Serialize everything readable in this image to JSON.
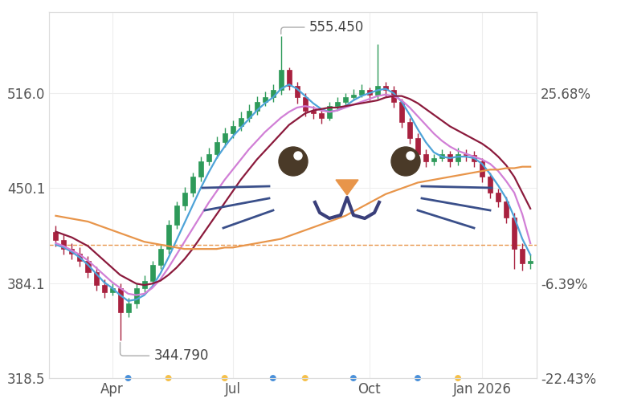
{
  "chart_data": {
    "type": "candlestick",
    "categories": [
      null,
      null,
      null,
      null,
      null,
      null,
      null,
      "Apr",
      null,
      null,
      null,
      null,
      null,
      null,
      null,
      null,
      null,
      null,
      null,
      null,
      null,
      null,
      "Jul",
      null,
      null,
      null,
      null,
      null,
      null,
      null,
      null,
      null,
      null,
      null,
      null,
      null,
      null,
      null,
      null,
      "Oct",
      null,
      null,
      null,
      null,
      null,
      null,
      null,
      null,
      null,
      null,
      null,
      null,
      null,
      "Jan 2026",
      null,
      null,
      null,
      null,
      null,
      null
    ],
    "open": [
      420,
      414,
      408,
      405,
      400,
      392,
      383,
      378,
      381,
      364,
      370,
      381,
      386,
      397,
      408,
      425,
      438,
      447,
      458,
      469,
      474,
      482,
      488,
      493,
      499,
      504,
      510,
      513,
      518,
      532,
      521,
      513,
      504,
      502,
      499,
      507,
      510,
      513,
      515,
      518,
      515,
      521,
      518,
      510,
      496,
      485,
      474,
      469,
      471,
      474,
      469,
      474,
      473,
      469,
      458,
      447,
      441,
      430,
      408,
      398
    ],
    "high": [
      424,
      418,
      412,
      409,
      403,
      396,
      387,
      384,
      384,
      374,
      384,
      390,
      400,
      411,
      428,
      441,
      451,
      461,
      472,
      478,
      486,
      492,
      497,
      503,
      508,
      514,
      517,
      522,
      555.45,
      534,
      524,
      516,
      507,
      505,
      510,
      513,
      516,
      519,
      522,
      520,
      550,
      524,
      521,
      512,
      499,
      488,
      477,
      474,
      477,
      476,
      478,
      477,
      476,
      471,
      461,
      450,
      444,
      433,
      412,
      404
    ],
    "low": [
      410,
      404,
      401,
      396,
      388,
      379,
      374,
      376,
      344.79,
      361,
      367,
      378,
      383,
      394,
      405,
      422,
      435,
      444,
      455,
      466,
      471,
      479,
      485,
      490,
      496,
      501,
      507,
      510,
      515,
      518,
      509,
      500,
      498,
      495,
      497,
      505,
      507,
      511,
      513,
      511,
      512,
      514,
      506,
      492,
      481,
      470,
      465,
      466,
      469,
      465,
      466,
      469,
      465,
      454,
      443,
      437,
      426,
      394,
      393,
      394
    ],
    "close": [
      414,
      408,
      405,
      400,
      392,
      383,
      378,
      381,
      364,
      370,
      381,
      386,
      397,
      408,
      425,
      438,
      447,
      458,
      469,
      474,
      482,
      488,
      493,
      499,
      504,
      510,
      513,
      518,
      532,
      521,
      513,
      504,
      502,
      499,
      507,
      510,
      513,
      515,
      518,
      515,
      521,
      518,
      510,
      496,
      485,
      474,
      469,
      471,
      474,
      469,
      474,
      473,
      469,
      458,
      447,
      441,
      430,
      408,
      398,
      400
    ],
    "colors": [
      "#a8213f",
      "#a8213f",
      "#a8213f",
      "#a8213f",
      "#a8213f",
      "#a8213f",
      "#a8213f",
      "#2e9a5a",
      "#a8213f",
      "#2e9a5a",
      "#2e9a5a",
      "#2e9a5a",
      "#2e9a5a",
      "#2e9a5a",
      "#2e9a5a",
      "#2e9a5a",
      "#2e9a5a",
      "#2e9a5a",
      "#2e9a5a",
      "#2e9a5a",
      "#2e9a5a",
      "#2e9a5a",
      "#2e9a5a",
      "#2e9a5a",
      "#2e9a5a",
      "#2e9a5a",
      "#2e9a5a",
      "#2e9a5a",
      "#2e9a5a",
      "#a8213f",
      "#a8213f",
      "#a8213f",
      "#a8213f",
      "#a8213f",
      "#2e9a5a",
      "#2e9a5a",
      "#2e9a5a",
      "#2e9a5a",
      "#2e9a5a",
      "#a8213f",
      "#2e9a5a",
      "#a8213f",
      "#a8213f",
      "#a8213f",
      "#a8213f",
      "#a8213f",
      "#a8213f",
      "#2e9a5a",
      "#2e9a5a",
      "#a8213f",
      "#2e9a5a",
      "#a8213f",
      "#a8213f",
      "#a8213f",
      "#a8213f",
      "#a8213f",
      "#a8213f",
      "#a8213f",
      "#a8213f",
      "#2e9a5a"
    ],
    "series": [
      {
        "color": "#4ea3d8",
        "type": "line",
        "values": [
          411,
          409,
          406,
          402,
          397,
          391,
          385,
          381,
          376,
          372,
          373,
          376,
          382,
          391,
          402,
          414,
          426,
          438,
          450,
          461,
          471,
          479,
          486,
          492,
          498,
          504,
          509,
          513,
          519,
          522,
          519,
          514,
          509,
          505,
          503,
          504,
          507,
          511,
          514,
          516,
          518,
          519,
          516,
          510,
          501,
          491,
          482,
          475,
          472,
          471,
          472,
          472,
          471,
          467,
          460,
          452,
          443,
          430,
          415,
          404
        ]
      },
      {
        "color": "#d17fd6",
        "type": "line",
        "values": [
          412,
          410,
          407,
          404,
          400,
          395,
          390,
          385,
          381,
          377,
          376,
          377,
          381,
          387,
          395,
          404,
          413,
          422,
          431,
          440,
          448,
          456,
          463,
          470,
          477,
          483,
          489,
          494,
          499,
          503,
          506,
          507,
          506,
          504,
          503,
          504,
          506,
          508,
          510,
          512,
          514,
          515,
          514,
          511,
          506,
          500,
          494,
          488,
          483,
          479,
          476,
          474,
          472,
          470,
          467,
          462,
          455,
          447,
          432,
          412
        ]
      },
      {
        "color": "#8b1a3c",
        "type": "line",
        "values": [
          420,
          418,
          416,
          413,
          410,
          405,
          400,
          395,
          390,
          387,
          384,
          383,
          384,
          386,
          390,
          395,
          401,
          408,
          416,
          424,
          432,
          440,
          448,
          456,
          463,
          470,
          476,
          482,
          488,
          494,
          498,
          502,
          504,
          505,
          506,
          506,
          507,
          508,
          509,
          510,
          511,
          513,
          514,
          514,
          512,
          509,
          505,
          501,
          497,
          493,
          490,
          487,
          484,
          481,
          477,
          472,
          466,
          458,
          447,
          436
        ]
      },
      {
        "color": "#e8954a",
        "type": "line",
        "values": [
          431,
          430,
          429,
          428,
          427,
          425,
          423,
          421,
          419,
          417,
          415,
          413,
          412,
          411,
          410,
          409,
          408,
          408,
          408,
          408,
          408,
          409,
          409,
          410,
          411,
          412,
          413,
          414,
          415,
          417,
          419,
          421,
          423,
          425,
          427,
          429,
          431,
          434,
          437,
          440,
          443,
          446,
          448,
          450,
          452,
          454,
          455,
          456,
          457,
          458,
          459,
          460,
          461,
          462,
          463,
          463,
          464,
          464,
          465,
          465
        ]
      }
    ],
    "baseline": 410.6,
    "baseline_color": "#e8954a",
    "ylim": [
      318.5,
      572
    ],
    "yticks": [
      318.5,
      384.1,
      450.1,
      516.0
    ],
    "y2lim": [
      -22.43,
      39.31
    ],
    "y2ticks": [
      {
        "value": -22.43,
        "label": "-22.43%"
      },
      {
        "value": -6.39,
        "label": "-6.39%"
      },
      {
        "value": 25.68,
        "label": "25.68%"
      }
    ],
    "annotations": [
      {
        "text": "555.450",
        "x": 28,
        "y": 555.45
      },
      {
        "text": "344.790",
        "x": 8,
        "y": 344.79
      }
    ],
    "events": {
      "positions": [
        9,
        14,
        21,
        27,
        31,
        37,
        45,
        50
      ],
      "colors": [
        "#4a90d9",
        "#f5c04a",
        "#f5c04a",
        "#4a90d9",
        "#f5c04a",
        "#4a90d9",
        "#4a90d9",
        "#f5c04a"
      ]
    },
    "grid": true
  }
}
